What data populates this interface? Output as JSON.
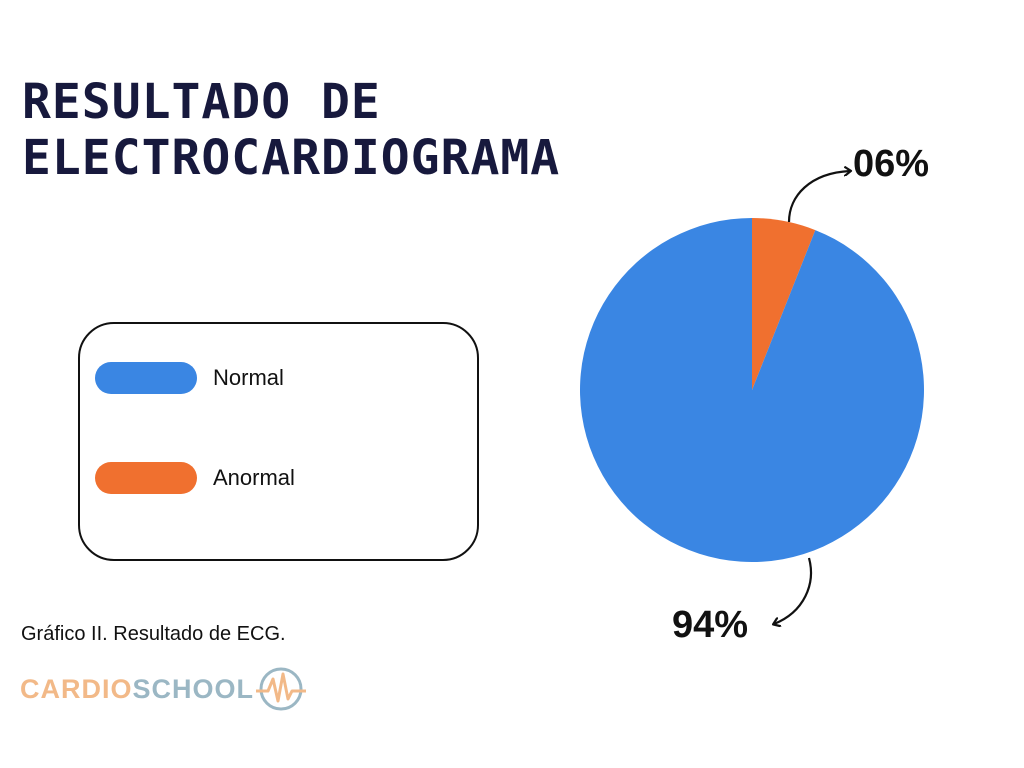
{
  "title_line1": "RESULTADO DE",
  "title_line2": "ELECTROCARDIOGRAMA",
  "caption": "Gráfico II. Resultado de ECG.",
  "logo": {
    "part1": "CARDIO",
    "part2": "SCHOOL",
    "color1": "#f2b988",
    "color2": "#9bb7c4"
  },
  "chart_data": {
    "type": "pie",
    "categories": [
      "Normal",
      "Anormal"
    ],
    "values": [
      94,
      6
    ],
    "labels": [
      "94%",
      "06%"
    ],
    "colors": [
      "#3a86e3",
      "#f0702f"
    ],
    "legend": "left"
  }
}
